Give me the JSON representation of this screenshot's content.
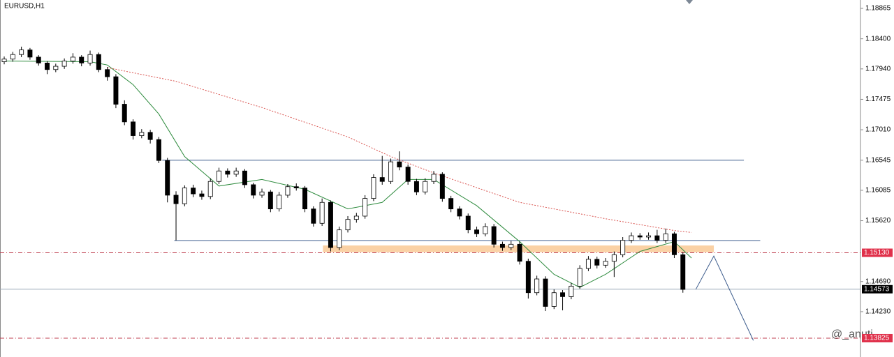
{
  "chart_data": {
    "type": "candlestick",
    "title": "EURUSD,H1",
    "watermark": "@_anuti",
    "xlim": [
      -0.49,
      99.67
    ],
    "ylim": [
      1.13537,
      1.18993
    ],
    "yticks": [
      1.18865,
      {
        "value": 1.184,
        "label": "1.18400"
      },
      {
        "value": 1.1794,
        "label": "1.17940"
      },
      1.17475,
      {
        "value": 1.1701,
        "label": "1.17010"
      },
      1.16545,
      1.16085,
      {
        "value": 1.1562,
        "label": "1.15620"
      },
      {
        "value": 1.1469,
        "label": "1.14690"
      },
      {
        "value": 1.1423,
        "label": "1.14230"
      }
    ],
    "price_labels": [
      {
        "value": 1.1513,
        "label": "1.15130",
        "color": "#e0314b"
      },
      {
        "value": 1.14573,
        "label": "1.14573",
        "color": "#000000"
      },
      {
        "value": 1.13825,
        "label": "1.13825",
        "color": "#e0314b"
      }
    ],
    "candles": {
      "open": [
        1.1805,
        1.1809,
        1.1816,
        1.1823,
        1.1812,
        1.1803,
        1.1793,
        1.1798,
        1.1806,
        1.1812,
        1.1803,
        1.1816,
        1.1793,
        1.1782,
        1.174,
        1.1713,
        1.1692,
        1.1697,
        1.1686,
        1.1654,
        1.1601,
        1.1588,
        1.1612,
        1.1603,
        1.1599,
        1.1622,
        1.1638,
        1.1633,
        1.1638,
        1.1617,
        1.1601,
        1.1606,
        1.158,
        1.1601,
        1.1614,
        1.1612,
        1.158,
        1.1558,
        1.159,
        1.1521,
        1.1548,
        1.1564,
        1.1569,
        1.1596,
        1.1628,
        1.1622,
        1.1652,
        1.1644,
        1.1622,
        1.1606,
        1.1622,
        1.1633,
        1.1596,
        1.158,
        1.1569,
        1.1548,
        1.1542,
        1.1553,
        1.1526,
        1.1521,
        1.1526,
        1.15,
        1.1452,
        1.1473,
        1.1431,
        1.1452,
        1.1446,
        1.1462,
        1.1489,
        1.1503,
        1.1494,
        1.15,
        1.151,
        1.1532,
        1.1539,
        1.1537,
        1.1539,
        1.1532,
        1.1542,
        1.151
      ],
      "high": [
        1.1813,
        1.182,
        1.1828,
        1.1826,
        1.1815,
        1.1806,
        1.1802,
        1.181,
        1.1818,
        1.1815,
        1.1822,
        1.1819,
        1.1797,
        1.1786,
        1.1746,
        1.1717,
        1.1702,
        1.1701,
        1.169,
        1.1658,
        1.1607,
        1.1616,
        1.1617,
        1.1608,
        1.1627,
        1.1643,
        1.1642,
        1.1643,
        1.1641,
        1.162,
        1.1611,
        1.1609,
        1.1606,
        1.1618,
        1.1619,
        1.1615,
        1.1584,
        1.1596,
        1.1593,
        1.1553,
        1.1569,
        1.1574,
        1.1601,
        1.1633,
        1.1661,
        1.1657,
        1.1668,
        1.1648,
        1.1626,
        1.1627,
        1.1638,
        1.1636,
        1.16,
        1.1584,
        1.1573,
        1.1553,
        1.1558,
        1.1557,
        1.153,
        1.1531,
        1.153,
        1.1504,
        1.1478,
        1.1477,
        1.1457,
        1.1456,
        1.1467,
        1.1494,
        1.1508,
        1.1507,
        1.1505,
        1.1515,
        1.1537,
        1.1544,
        1.1543,
        1.1544,
        1.1548,
        1.155,
        1.1545,
        1.1514
      ],
      "low": [
        1.1801,
        1.1805,
        1.1812,
        1.1808,
        1.1799,
        1.1786,
        1.1789,
        1.1794,
        1.1802,
        1.1798,
        1.1799,
        1.1789,
        1.1776,
        1.1734,
        1.1708,
        1.1686,
        1.1688,
        1.168,
        1.165,
        1.159,
        1.1532,
        1.1584,
        1.1598,
        1.1594,
        1.1595,
        1.1618,
        1.1628,
        1.1629,
        1.1612,
        1.1596,
        1.1597,
        1.1575,
        1.1576,
        1.1597,
        1.1608,
        1.1575,
        1.1553,
        1.1554,
        1.1515,
        1.1517,
        1.1544,
        1.1559,
        1.1565,
        1.1592,
        1.1617,
        1.1618,
        1.1639,
        1.1617,
        1.1601,
        1.1602,
        1.1618,
        1.1591,
        1.1575,
        1.1564,
        1.1543,
        1.1537,
        1.1538,
        1.1521,
        1.1516,
        1.1517,
        1.1495,
        1.1443,
        1.1448,
        1.1424,
        1.1427,
        1.1425,
        1.1442,
        1.1458,
        1.1485,
        1.1489,
        1.149,
        1.1476,
        1.1506,
        1.1528,
        1.1533,
        1.1533,
        1.1528,
        1.1528,
        1.1505,
        1.1452
      ],
      "close": [
        1.1809,
        1.1816,
        1.1823,
        1.1812,
        1.1803,
        1.1793,
        1.1798,
        1.1806,
        1.1812,
        1.1803,
        1.1816,
        1.1793,
        1.1782,
        1.174,
        1.1713,
        1.1692,
        1.1697,
        1.1686,
        1.1654,
        1.1601,
        1.1588,
        1.1612,
        1.1603,
        1.1599,
        1.1622,
        1.1638,
        1.1633,
        1.1638,
        1.1617,
        1.1601,
        1.1606,
        1.158,
        1.1601,
        1.1614,
        1.1612,
        1.158,
        1.1558,
        1.159,
        1.1521,
        1.1548,
        1.1564,
        1.1569,
        1.1596,
        1.1628,
        1.1622,
        1.1652,
        1.1644,
        1.1622,
        1.1606,
        1.1622,
        1.1633,
        1.1596,
        1.158,
        1.1569,
        1.1548,
        1.1542,
        1.1553,
        1.1526,
        1.1521,
        1.1526,
        1.15,
        1.1452,
        1.1473,
        1.1431,
        1.1452,
        1.1446,
        1.1462,
        1.1489,
        1.1503,
        1.1494,
        1.15,
        1.151,
        1.1532,
        1.1539,
        1.1537,
        1.1539,
        1.1532,
        1.1542,
        1.151,
        1.1457
      ]
    },
    "series": [
      {
        "color": "#2e8b3e",
        "dash": false,
        "x": [
          0,
          10,
          12,
          15,
          18,
          21,
          25,
          30,
          35,
          40,
          44,
          47,
          50,
          55,
          60,
          64,
          67,
          70,
          74,
          78,
          80
        ],
        "values": [
          1.1806,
          1.1805,
          1.18,
          1.177,
          1.1725,
          1.166,
          1.1615,
          1.1625,
          1.161,
          1.158,
          1.159,
          1.1625,
          1.1625,
          1.1585,
          1.153,
          1.148,
          1.146,
          1.148,
          1.1515,
          1.153,
          1.1505
        ]
      },
      {
        "color": "#d9534f",
        "dash": true,
        "x": [
          12,
          20,
          30,
          40,
          45,
          50,
          60,
          70,
          78,
          80
        ],
        "values": [
          1.1796,
          1.1775,
          1.1735,
          1.169,
          1.166,
          1.1635,
          1.159,
          1.1565,
          1.1547,
          1.1544
        ]
      }
    ],
    "levels": [
      {
        "value": 1.16545,
        "from": 18.4,
        "to": 86.1,
        "color": "#3b5b8c",
        "style": "solid"
      },
      {
        "value": 1.15317,
        "from": 19.8,
        "to": 88,
        "color": "#3b5b8c",
        "style": "solid"
      },
      {
        "value": 1.1513,
        "color": "#c04050",
        "style": "dashdot"
      },
      {
        "value": 1.14573,
        "color": "#9aa8b8",
        "style": "solid"
      },
      {
        "value": 1.13825,
        "color": "#c04050",
        "style": "dashdot"
      }
    ],
    "zone": {
      "low": 1.1516,
      "high": 1.1522,
      "from": 37.1,
      "to": 82.6,
      "color": "#f9c58f"
    },
    "projection": {
      "color": "#3b5b8c",
      "x": [
        80.5,
        82.6,
        87.2
      ],
      "values": [
        1.1457,
        1.1508,
        1.1379
      ]
    }
  }
}
